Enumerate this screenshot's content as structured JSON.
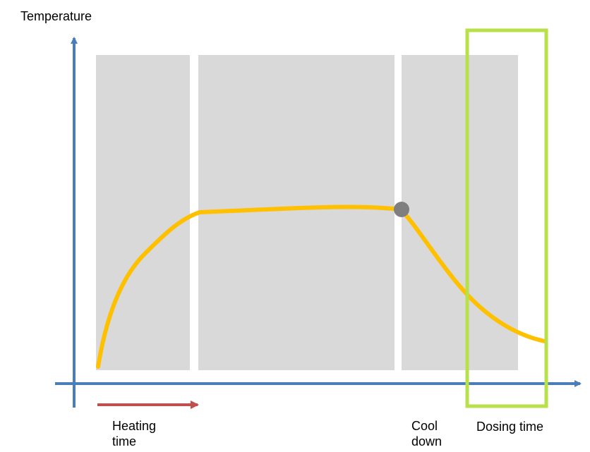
{
  "diagram": {
    "y_axis_label": "Temperature",
    "labels": {
      "heating_time": "Heating\ntime",
      "cool_down": "Cool\ndown",
      "dosing_time": "Dosing time"
    }
  },
  "colors": {
    "axis": "#4a7ebb",
    "phase_panel": "#d9d9d9",
    "curve": "#ffc000",
    "marker": "#7f7f7f",
    "heating_arrow": "#c0504d",
    "dosing_highlight": "#b8e04a",
    "text": "#000000"
  }
}
